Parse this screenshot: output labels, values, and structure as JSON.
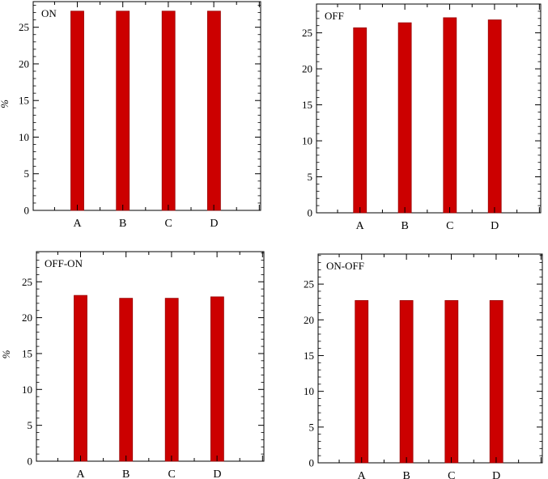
{
  "chart_data": [
    {
      "type": "bar",
      "title": "ON",
      "ylabel": "%",
      "categories": [
        "A",
        "B",
        "C",
        "D"
      ],
      "values": [
        27.2,
        27.2,
        27.2,
        27.2
      ],
      "ylim": [
        0,
        28.5
      ],
      "yticks": [
        0,
        5,
        10,
        15,
        20,
        25
      ],
      "bar_color": "#cc0000",
      "grid": false
    },
    {
      "type": "bar",
      "title": "OFF",
      "ylabel": "",
      "categories": [
        "A",
        "B",
        "C",
        "D"
      ],
      "values": [
        25.7,
        26.4,
        27.1,
        26.8
      ],
      "ylim": [
        0,
        29
      ],
      "yticks": [
        0,
        5,
        10,
        15,
        20,
        25
      ],
      "bar_color": "#cc0000",
      "grid": false
    },
    {
      "type": "bar",
      "title": "OFF-ON",
      "ylabel": "%",
      "categories": [
        "A",
        "B",
        "C",
        "D"
      ],
      "values": [
        23.1,
        22.7,
        22.7,
        22.9
      ],
      "ylim": [
        0,
        29.2
      ],
      "yticks": [
        0,
        5,
        10,
        15,
        20,
        25
      ],
      "bar_color": "#cc0000",
      "grid": false
    },
    {
      "type": "bar",
      "title": "ON-OFF",
      "ylabel": "",
      "categories": [
        "A",
        "B",
        "C",
        "D"
      ],
      "values": [
        22.7,
        22.7,
        22.7,
        22.7
      ],
      "ylim": [
        0,
        29.2
      ],
      "yticks": [
        0,
        5,
        10,
        15,
        20,
        25
      ],
      "bar_color": "#cc0000",
      "grid": false
    }
  ]
}
